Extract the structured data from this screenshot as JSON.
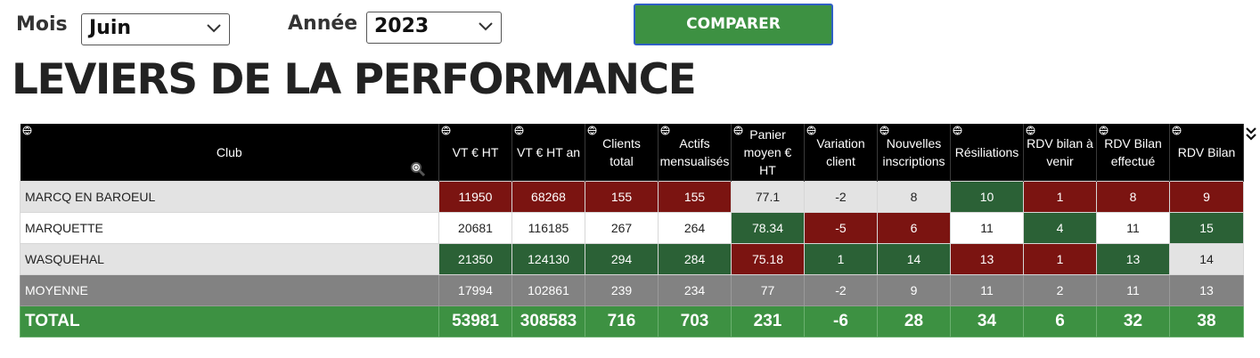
{
  "filters": {
    "month_label": "Mois",
    "month_value": "Juin",
    "year_label": "Année",
    "year_value": "2023"
  },
  "compare_button": "COMPARER",
  "page_title": "LEVIERS DE LA PERFORMANCE",
  "colors": {
    "green": "#3d9142",
    "dark_green": "#2b6136",
    "dark_red": "#7b1411",
    "grey": "#828282",
    "light_grey": "#e3e3e3"
  },
  "table": {
    "headers": [
      [
        "Club"
      ],
      [
        "VT € HT"
      ],
      [
        "VT € HT an"
      ],
      [
        "Clients",
        "total"
      ],
      [
        "Actifs",
        "mensualisés"
      ],
      [
        "Panier",
        "moyen €",
        "HT"
      ],
      [
        "Variation",
        "client"
      ],
      [
        "Nouvelles",
        "inscriptions"
      ],
      [
        "Résiliations"
      ],
      [
        "RDV bilan à",
        "venir"
      ],
      [
        "RDV Bilan",
        "effectué"
      ],
      [
        "RDV Bilan"
      ]
    ],
    "rows": [
      {
        "club": "MARCQ EN BAROEUL",
        "values": [
          "11950",
          "68268",
          "155",
          "155",
          "77.1",
          "-2",
          "8",
          "10",
          "1",
          "8",
          "9"
        ]
      },
      {
        "club": "MARQUETTE",
        "values": [
          "20681",
          "116185",
          "267",
          "264",
          "78.34",
          "-5",
          "6",
          "11",
          "4",
          "11",
          "15"
        ]
      },
      {
        "club": "WASQUEHAL",
        "values": [
          "21350",
          "124130",
          "294",
          "284",
          "75.18",
          "1",
          "14",
          "13",
          "1",
          "13",
          "14"
        ]
      }
    ],
    "average": {
      "club": "MOYENNE",
      "values": [
        "17994",
        "102861",
        "239",
        "234",
        "77",
        "-2",
        "9",
        "11",
        "2",
        "11",
        "13"
      ]
    },
    "total": {
      "club": "TOTAL",
      "values": [
        "53981",
        "308583",
        "716",
        "703",
        "231",
        "-6",
        "28",
        "34",
        "6",
        "32",
        "38"
      ]
    }
  }
}
